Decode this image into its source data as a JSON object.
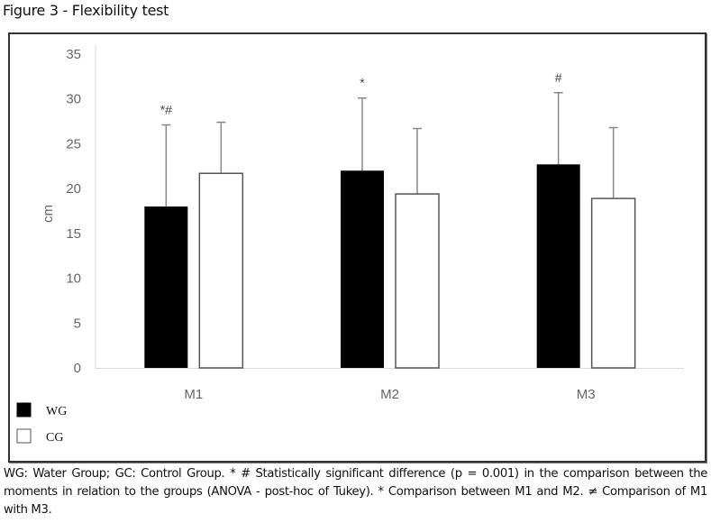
{
  "figure_title": "Figure 3 - Flexibility test",
  "caption": "WG: Water Group; GC: Control Group. * # Statistically significant difference (p = 0.001) in the comparison between the moments in relation to the groups (ANOVA - post-hoc of Tukey). * Comparison between M1 and M2. ≠ Comparison of M1 with M3.",
  "colors": {
    "wg_fill": "#000000",
    "cg_fill": "#ffffff",
    "cg_stroke": "#555555",
    "error_bar": "#888888",
    "axis": "#d9d9d9"
  },
  "chart_data": {
    "type": "bar",
    "title": "",
    "xlabel": "",
    "ylabel": "cm",
    "ylim": [
      0,
      35
    ],
    "yticks": [
      0,
      5,
      10,
      15,
      20,
      25,
      30,
      35
    ],
    "grid": false,
    "categories": [
      "M1",
      "M2",
      "M3"
    ],
    "series": [
      {
        "name": "WG",
        "values": [
          18.0,
          22.0,
          22.7
        ],
        "error_upper": [
          27.1,
          30.1,
          30.7
        ]
      },
      {
        "name": "CG",
        "values": [
          21.7,
          19.4,
          18.9
        ],
        "error_upper": [
          27.4,
          26.7,
          26.8
        ]
      }
    ],
    "annotations": [
      {
        "category": "M1",
        "series": "WG",
        "text": "*#"
      },
      {
        "category": "M2",
        "series": "WG",
        "text": "*"
      },
      {
        "category": "M3",
        "series": "WG",
        "text": "#"
      }
    ],
    "legend": {
      "position": "bottom-left",
      "entries": [
        "WG",
        "CG"
      ]
    }
  }
}
